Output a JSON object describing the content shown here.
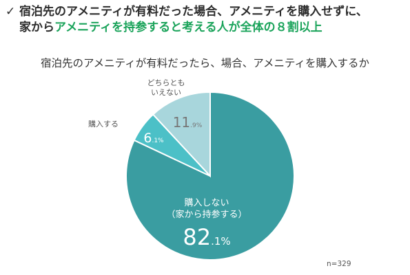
{
  "headline": {
    "check": "✓",
    "line1": "宿泊先のアメニティが有料だった場合、アメニティを購入せずに、",
    "line2_prefix": "家から",
    "line2_highlight": "アメニティを持参すると考える人が全体の８割以上"
  },
  "chart_data": {
    "type": "pie",
    "title": "宿泊先のアメニティが有料だったら、場合、アメニティを購入するか",
    "slices": [
      {
        "label": "購入しない（家から持参する）",
        "value": 82.1,
        "int": "82",
        "dec": ".1%",
        "color": "#3a9da1"
      },
      {
        "label": "購入する",
        "value": 6.1,
        "int": "6",
        "dec": ".1%",
        "color": "#4cc0c7"
      },
      {
        "label": "どちらともいえない",
        "value": 11.9,
        "int": "11",
        "dec": ".9%",
        "color": "#a8d6dc"
      }
    ],
    "labels": {
      "main_line1": "購入しない",
      "main_line2": "（家から持参する）",
      "buy": "購入する",
      "neutral_line1": "どちらとも",
      "neutral_line2": "いえない"
    },
    "note": "n=329"
  }
}
